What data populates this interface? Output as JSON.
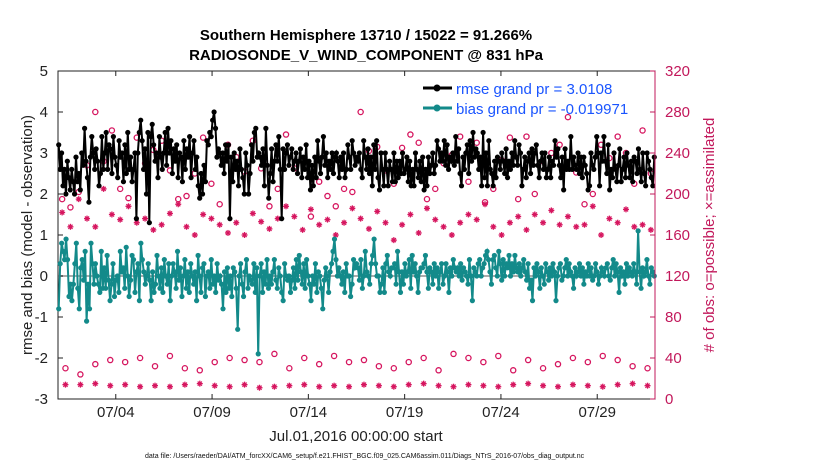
{
  "chart_data": {
    "type": "line",
    "title_line1": "Southern Hemisphere 13710 / 15022 = 91.266%",
    "title_line2": "RADIOSONDE_V_WIND_COMPONENT @ 831 hPa",
    "xlabel": "Jul.01,2016 00:00:00 start",
    "ylabel_left": "rmse and bias (model - observation)",
    "ylabel_right": "# of obs: o=possible; ×=assimilated",
    "footer": "data file: /Users/raeder/DAI/ATM_forcXX/CAM6_setup/f.e21.FHIST_BGC.f09_025.CAM6assim.011/Diags_NTrS_2016-07/obs_diag_output.nc",
    "x_range_days": [
      1.0,
      32.0
    ],
    "y_left_range": [
      -3,
      5
    ],
    "y_right_range": [
      0,
      320
    ],
    "left_ticks": [
      "-3",
      "-2",
      "-1",
      "0",
      "1",
      "2",
      "3",
      "4",
      "5"
    ],
    "right_ticks": [
      "0",
      "40",
      "80",
      "120",
      "160",
      "200",
      "240",
      "280",
      "320"
    ],
    "x_ticks": [
      {
        "day": 4,
        "label": "07/04"
      },
      {
        "day": 9,
        "label": "07/09"
      },
      {
        "day": 14,
        "label": "07/14"
      },
      {
        "day": 19,
        "label": "07/19"
      },
      {
        "day": 24,
        "label": "07/24"
      },
      {
        "day": 29,
        "label": "07/29"
      }
    ],
    "interval_days": 0.25,
    "series": [
      {
        "name": "rmse",
        "legend": "rmse grand pr = 3.0108",
        "color": "#000000",
        "axis": "left",
        "values": [
          3.2,
          2.6,
          3.0,
          2.2,
          2.6,
          2.0,
          2.8,
          2.4,
          2.1,
          2.6,
          2.3,
          2.0,
          2.9,
          2.3,
          2.5,
          2.1,
          3.0,
          2.7,
          3.6,
          2.8,
          2.4,
          1.8,
          2.9,
          3.4,
          3.0,
          2.6,
          3.1,
          2.8,
          2.2,
          2.5,
          3.4,
          2.6,
          3.0,
          3.5,
          2.6,
          3.2,
          3.1,
          2.5,
          3.4,
          2.9,
          2.7,
          2.4,
          3.3,
          2.9,
          3.0,
          2.3,
          3.2,
          2.5,
          3.5,
          2.6,
          2.9,
          2.3,
          2.6,
          3.0,
          1.4,
          3.0,
          3.5,
          3.8,
          3.3,
          2.6,
          3.1,
          2.0,
          3.5,
          1.3,
          3.4,
          3.7,
          3.2,
          2.8,
          3.0,
          2.4,
          3.4,
          2.9,
          2.6,
          3.0,
          3.5,
          2.7,
          3.6,
          3.0,
          3.3,
          2.5,
          3.1,
          2.8,
          3.2,
          2.4,
          3.0,
          2.9,
          2.3,
          3.3,
          2.6,
          3.1,
          2.9,
          3.4,
          2.4,
          3.0,
          3.3,
          2.6,
          2.9,
          2.2,
          1.9,
          2.5,
          2.0,
          2.7,
          2.3,
          3.3,
          3.2,
          3.5,
          3.4,
          3.8,
          4.0,
          3.6,
          2.9,
          3.1,
          3.0,
          2.7,
          3.0,
          2.5,
          3.2,
          2.8,
          3.2,
          1.4,
          2.9,
          2.3,
          3.0,
          2.6,
          2.8,
          2.2,
          3.1,
          2.6,
          2.4,
          2.0,
          3.0,
          2.7,
          2.0,
          2.5,
          3.2,
          2.8,
          3.5,
          3.6,
          2.9,
          3.0,
          2.9,
          2.7,
          3.1,
          2.2,
          3.6,
          2.7,
          1.9,
          2.5,
          3.1,
          2.3,
          2.8,
          3.2,
          2.8,
          3.4,
          2.6,
          1.4,
          3.1,
          2.6,
          3.0,
          3.2,
          2.7,
          2.9,
          3.1,
          2.6,
          2.8,
          3.0,
          2.5,
          2.8,
          3.1,
          2.4,
          2.9,
          2.6,
          3.2,
          2.4,
          2.8,
          2.1,
          2.7,
          2.2,
          2.9,
          2.4,
          3.3,
          2.8,
          2.5,
          2.9,
          3.4,
          2.7,
          3.0,
          2.4,
          2.8,
          2.6,
          3.0,
          2.5,
          2.9,
          3.0,
          2.8,
          2.4,
          2.9,
          2.6,
          3.0,
          2.4,
          2.6,
          3.2,
          2.9,
          2.6,
          3.3,
          3.0,
          2.7,
          2.9,
          2.8,
          3.0,
          2.6,
          2.4,
          3.3,
          2.9,
          2.6,
          3.1,
          2.5,
          2.9,
          2.2,
          3.2,
          2.6,
          3.3,
          2.4,
          2.1,
          3.0,
          2.6,
          2.2,
          3.0,
          2.6,
          2.2,
          2.8,
          2.6,
          2.3,
          3.0,
          2.3,
          2.8,
          2.4,
          2.8,
          2.5,
          3.0,
          2.5,
          2.6,
          2.9,
          2.3,
          2.8,
          2.2,
          2.6,
          2.2,
          3.0,
          2.6,
          2.4,
          2.8,
          2.3,
          2.9,
          2.1,
          2.6,
          2.2,
          2.9,
          2.5,
          2.7,
          3.0,
          2.5,
          2.7,
          3.3,
          3.1,
          2.8,
          3.0,
          2.8,
          3.3,
          2.7,
          3.2,
          2.6,
          2.9,
          2.8,
          3.0,
          2.7,
          3.4,
          2.8,
          3.1,
          2.5,
          2.2,
          2.9,
          2.6,
          3.0,
          3.2,
          2.5,
          3.3,
          2.8,
          3.5,
          2.9,
          3.1,
          3.0,
          2.6,
          2.9,
          2.2,
          3.5,
          2.4,
          3.0,
          2.2,
          3.3,
          2.6,
          2.5,
          2.2,
          2.8,
          2.4,
          2.9,
          2.8,
          2.6,
          3.0,
          2.8,
          2.5,
          3.1,
          2.4,
          2.8,
          2.6,
          3.0,
          2.7,
          3.3,
          2.9,
          2.7,
          3.2,
          3.0,
          2.2,
          2.6,
          2.9,
          2.4,
          2.8,
          3.0,
          2.5,
          3.1,
          2.7,
          3.0,
          3.2,
          2.7,
          2.4,
          2.8,
          3.0,
          2.6,
          3.0,
          2.4,
          2.6,
          2.9,
          2.4,
          2.8,
          2.7,
          3.3,
          2.9,
          3.1,
          2.7,
          2.4,
          2.9,
          2.1,
          3.1,
          2.6,
          2.8,
          2.6,
          3.4,
          2.6,
          2.9,
          2.7,
          2.6,
          3.0,
          2.5,
          2.9,
          2.4,
          2.9,
          2.7,
          2.5,
          2.1,
          2.2,
          3.0,
          2.7,
          2.6,
          2.9,
          3.4,
          3.0,
          2.2,
          3.0,
          2.8,
          3.4,
          2.8,
          2.5,
          3.2,
          2.1,
          2.6,
          2.4,
          3.0,
          2.6,
          2.3,
          2.7,
          3.1,
          2.3,
          2.6,
          2.9,
          2.4,
          3.0,
          2.7,
          2.4,
          2.8,
          2.3,
          2.9,
          2.8,
          2.5,
          3.1,
          2.6,
          2.3,
          3.0,
          2.5,
          2.2,
          3.0,
          2.8,
          2.6,
          2.4,
          2.2,
          2.9
        ]
      },
      {
        "name": "bias",
        "legend": "bias grand pr = -0.019971",
        "color": "#138a8a",
        "axis": "left",
        "values": [
          -0.8,
          0.3,
          0.8,
          0.6,
          0.4,
          0.9,
          0.4,
          -0.5,
          -0.2,
          -0.6,
          -0.2,
          0.3,
          0.8,
          -0.3,
          -0.8,
          0.2,
          0.4,
          -0.1,
          0.6,
          -1.1,
          -0.2,
          -0.8,
          0.8,
          0.3,
          -0.2,
          0.3,
          0.0,
          -0.2,
          -0.4,
          0.6,
          -0.3,
          0.2,
          -0.3,
          0.5,
          -0.1,
          -0.6,
          -0.2,
          0.3,
          -0.5,
          -0.1,
          0.0,
          -0.4,
          0.6,
          0.1,
          0.2,
          -0.3,
          0.7,
          0.0,
          -0.5,
          -0.1,
          0.5,
          0.4,
          -0.4,
          0.1,
          0.3,
          -0.6,
          0.8,
          0.4,
          0.1,
          -0.2,
          0.0,
          0.3,
          -0.1,
          -0.6,
          0.1,
          -0.4,
          -0.2,
          0.5,
          0.0,
          -0.3,
          0.2,
          -0.4,
          0.4,
          0.0,
          -0.2,
          0.3,
          -0.6,
          0.0,
          0.3,
          0.1,
          -0.3,
          0.6,
          -0.1,
          0.2,
          -0.5,
          0.0,
          0.4,
          -0.3,
          0.1,
          -0.4,
          0.3,
          0.0,
          -0.2,
          0.1,
          -0.6,
          0.5,
          0.0,
          -0.4,
          0.2,
          0.3,
          -0.5,
          0.0,
          0.1,
          -0.3,
          0.4,
          -0.2,
          0.0,
          -0.4,
          0.3,
          -0.1,
          0.0,
          -0.2,
          -0.8,
          0.1,
          -0.4,
          0.2,
          -0.3,
          0.0,
          -0.5,
          0.2,
          0.1,
          -0.3,
          -1.3,
          0.0,
          0.3,
          -0.2,
          -0.5,
          0.1,
          0.4,
          -0.3,
          0.0,
          -0.1,
          -0.2,
          0.3,
          -0.4,
          0.2,
          -1.9,
          0.0,
          0.3,
          -0.4,
          0.1,
          -0.2,
          0.4,
          -0.3,
          0.0,
          -0.2,
          0.1,
          0.4,
          -0.1,
          -0.3,
          0.2,
          0.0,
          -0.4,
          -0.6,
          0.3,
          0.0,
          -0.1,
          0.0,
          -0.4,
          -0.1,
          0.2,
          -0.3,
          0.4,
          -0.1,
          0.5,
          0.1,
          -0.2,
          0.3,
          -0.3,
          0.4,
          0.0,
          -0.2,
          -0.6,
          0.0,
          -0.2,
          0.3,
          -0.4,
          0.1,
          0.0,
          -0.3,
          -0.8,
          -0.1,
          0.2,
          0.0,
          -0.4,
          0.1,
          0.3,
          0.6,
          0.9,
          0.4,
          0.0,
          0.2,
          0.0,
          -0.2,
          0.1,
          -0.4,
          0.3,
          0.0,
          0.0,
          -0.5,
          -0.2,
          0.4,
          0.2,
          0.3,
          0.2,
          -0.1,
          0.4,
          -0.3,
          0.0,
          0.6,
          0.1,
          0.0,
          -0.2,
          0.3,
          0.5,
          0.9,
          0.3,
          0.0,
          0.0,
          -0.4,
          -0.2,
          0.2,
          -0.4,
          0.3,
          0.5,
          0.1,
          0.0,
          0.2,
          0.2,
          0.3,
          -0.2,
          0.6,
          0.1,
          -0.4,
          0.1,
          -0.2,
          0.3,
          0.0,
          0.1,
          0.4,
          -0.3,
          0.5,
          0.1,
          0.3,
          0.0,
          -0.4,
          0.1,
          0.2,
          0.2,
          0.3,
          0.5,
          0.1,
          -0.3,
          0.2,
          0.1,
          -0.2,
          0.3,
          0.0,
          0.2,
          -0.3,
          0.1,
          0.3,
          -0.2,
          0.0,
          0.3,
          0.1,
          -0.4,
          0.2,
          0.0,
          0.4,
          0.2,
          0.1,
          0.2,
          0.0,
          0.3,
          -0.1,
          0.2,
          0.1,
          0.0,
          -0.2,
          0.4,
          0.0,
          -0.6,
          0.2,
          0.1,
          0.0,
          0.3,
          0.4,
          0.0,
          0.2,
          0.3,
          0.5,
          0.6,
          0.4,
          0.1,
          -0.2,
          0.4,
          0.5,
          0.2,
          0.0,
          0.6,
          0.3,
          -0.1,
          0.4,
          0.0,
          0.3,
          0.2,
          0.5,
          0.0,
          0.3,
          0.1,
          0.5,
          0.2,
          0.1,
          0.3,
          0.0,
          0.2,
          0.4,
          0.1,
          -0.1,
          0.3,
          -0.3,
          -0.1,
          -0.6,
          0.2,
          0.0,
          0.3,
          0.1,
          -0.3,
          0.2,
          0.0,
          -0.2,
          0.3,
          0.1,
          -0.1,
          0.2,
          0.0,
          0.3,
          0.1,
          -0.6,
          0.0,
          0.2,
          0.3,
          -0.1,
          0.0,
          0.2,
          0.4,
          0.0,
          0.3,
          0.1,
          0.0,
          -0.3,
          0.2,
          0.0,
          0.1,
          0.3,
          0.0,
          0.2,
          -0.2,
          0.1,
          0.0,
          0.3,
          0.0,
          0.2,
          -0.1,
          0.0,
          0.3,
          0.1,
          -0.2,
          0.0,
          0.2,
          0.1,
          0.0,
          0.2,
          0.3,
          0.0,
          -0.1,
          0.2,
          0.4,
          0.0,
          0.3,
          0.1,
          -0.4,
          0.2,
          0.0,
          0.1,
          -0.2,
          0.3,
          0.0,
          0.2,
          0.1,
          0.0,
          0.3,
          0.1,
          -0.2,
          1.1,
          0.1,
          -0.3,
          0.2,
          0.0,
          0.1,
          0.4,
          0.0,
          -0.2,
          0.2,
          0.1,
          0.0
        ]
      }
    ],
    "obs_counts": {
      "axis": "right",
      "color": "#d6165f",
      "possible_daily": [
        195,
        187,
        202,
        228,
        280,
        232,
        262,
        205,
        196,
        255,
        230,
        243,
        252,
        223,
        195,
        198,
        220,
        255,
        210,
        190,
        248,
        236,
        222,
        252,
        225,
        188,
        205,
        258,
        225,
        232,
        178,
        212,
        198,
        188,
        205,
        202,
        280,
        242,
        246,
        223,
        210,
        245,
        258,
        250,
        195,
        205,
        230,
        238,
        256,
        212,
        250,
        192,
        205,
        233,
        255,
        195,
        256,
        200,
        232,
        240,
        248,
        275,
        221,
        190,
        200,
        248,
        235,
        256,
        240,
        210,
        262,
        220
      ],
      "assimilated_daily": [
        182,
        168,
        195,
        176,
        168,
        205,
        180,
        175,
        188,
        172,
        176,
        165,
        170,
        181,
        190,
        168,
        160,
        180,
        176,
        170,
        162,
        172,
        160,
        181,
        173,
        166,
        176,
        188,
        178,
        165,
        185,
        170,
        175,
        160,
        172,
        186,
        176,
        166,
        183,
        172,
        155,
        170,
        180,
        162,
        186,
        175,
        168,
        160,
        172,
        180,
        175,
        190,
        168,
        160,
        172,
        178,
        165,
        180,
        172,
        184,
        170,
        178,
        168,
        170,
        188,
        160,
        176,
        172,
        185,
        168,
        170,
        165
      ],
      "possible_low": [
        30,
        24,
        34,
        38,
        36,
        40,
        32,
        42,
        30,
        28,
        36,
        40,
        38,
        36,
        44,
        30,
        40,
        34,
        42,
        36,
        38,
        32,
        30,
        36,
        40,
        28,
        44,
        40,
        36,
        42,
        28,
        38,
        30,
        34,
        40,
        36,
        42,
        38,
        32,
        30
      ],
      "assimilated_low": [
        14,
        14,
        15,
        13,
        14,
        12,
        13,
        12,
        14,
        15,
        13,
        12,
        14,
        11,
        12,
        13,
        14,
        12,
        13,
        12,
        14,
        13,
        12,
        14,
        15,
        13,
        12,
        14,
        13,
        12,
        14,
        15,
        13,
        12,
        14,
        13,
        12,
        14,
        15,
        13
      ]
    }
  }
}
